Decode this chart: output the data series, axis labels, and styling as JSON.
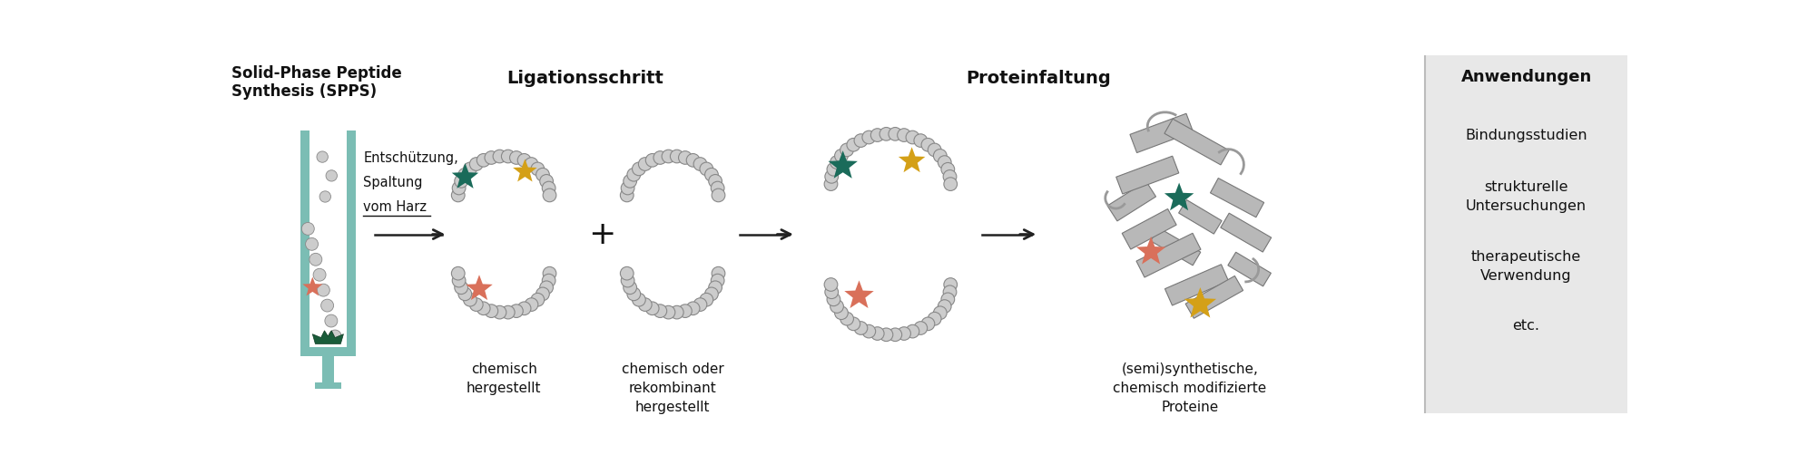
{
  "title_spps_line1": "Solid-Phase Peptide",
  "title_spps_line2": "Synthesis (SPPS)",
  "label_ligationsschritt": "Ligationsschritt",
  "label_proteinfaltung": "Proteinfaltung",
  "label_anwendungen": "Anwendungen",
  "label_chemisch": "chemisch\nhergestellt",
  "label_chemisch_oder": "chemisch oder\nrekombinant\nhergestellt",
  "label_semisynthetisch": "(semi)synthetische,\nchemisch modifizierte\nProteine",
  "label_entschützung": "Entschützung,\nSpaltung\nvom Harz",
  "app_items": [
    "Bindungsstudien",
    "strukturelle\nUntersuchungen",
    "therapeutische\nVerwendung",
    "etc."
  ],
  "color_teal_column": "#7bbdb4",
  "color_star_green": "#1a6b5a",
  "color_star_yellow": "#d4a017",
  "color_star_red": "#d9705a",
  "color_bead": "#cccccc",
  "color_bead_edge": "#888888",
  "color_background_right": "#e8e8e8",
  "color_arrow": "#222222",
  "color_text": "#111111",
  "bg_color": "#ffffff"
}
